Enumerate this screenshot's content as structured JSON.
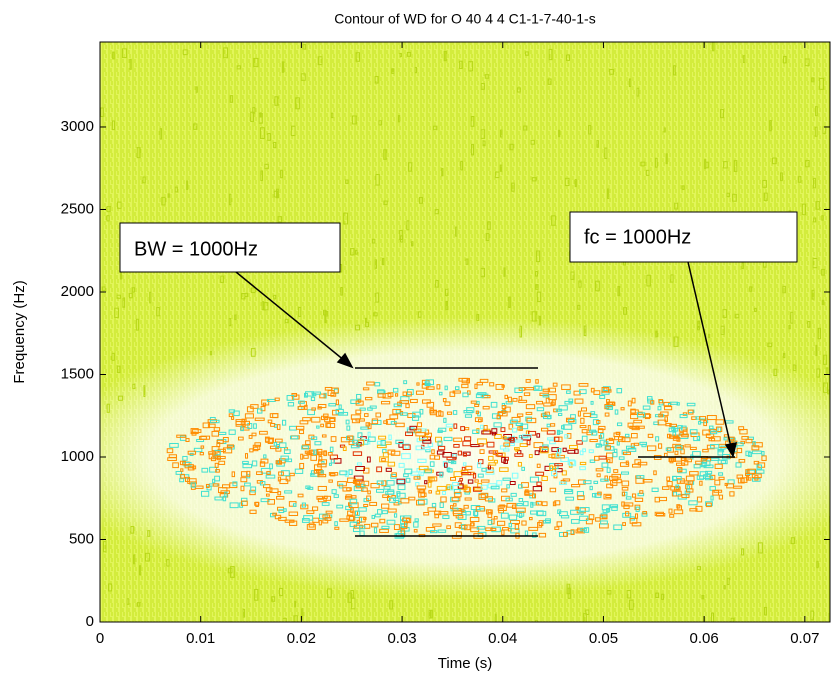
{
  "chart_data": {
    "type": "contour",
    "title": "Contour of WD for O 40 4 4 C1-1-7-40-1-s",
    "x_label": "Time (s)",
    "y_label": "Frequency (Hz)",
    "xlim": [
      0,
      0.0725
    ],
    "ylim": [
      0,
      3515
    ],
    "xticks": [
      0,
      0.01,
      0.02,
      0.03,
      0.04,
      0.05,
      0.06,
      0.07
    ],
    "yticks": [
      0,
      500,
      1000,
      1500,
      2000,
      2500,
      3000
    ],
    "annotations": [
      "BW = 1000Hz",
      "fc = 1000Hz"
    ]
  }
}
